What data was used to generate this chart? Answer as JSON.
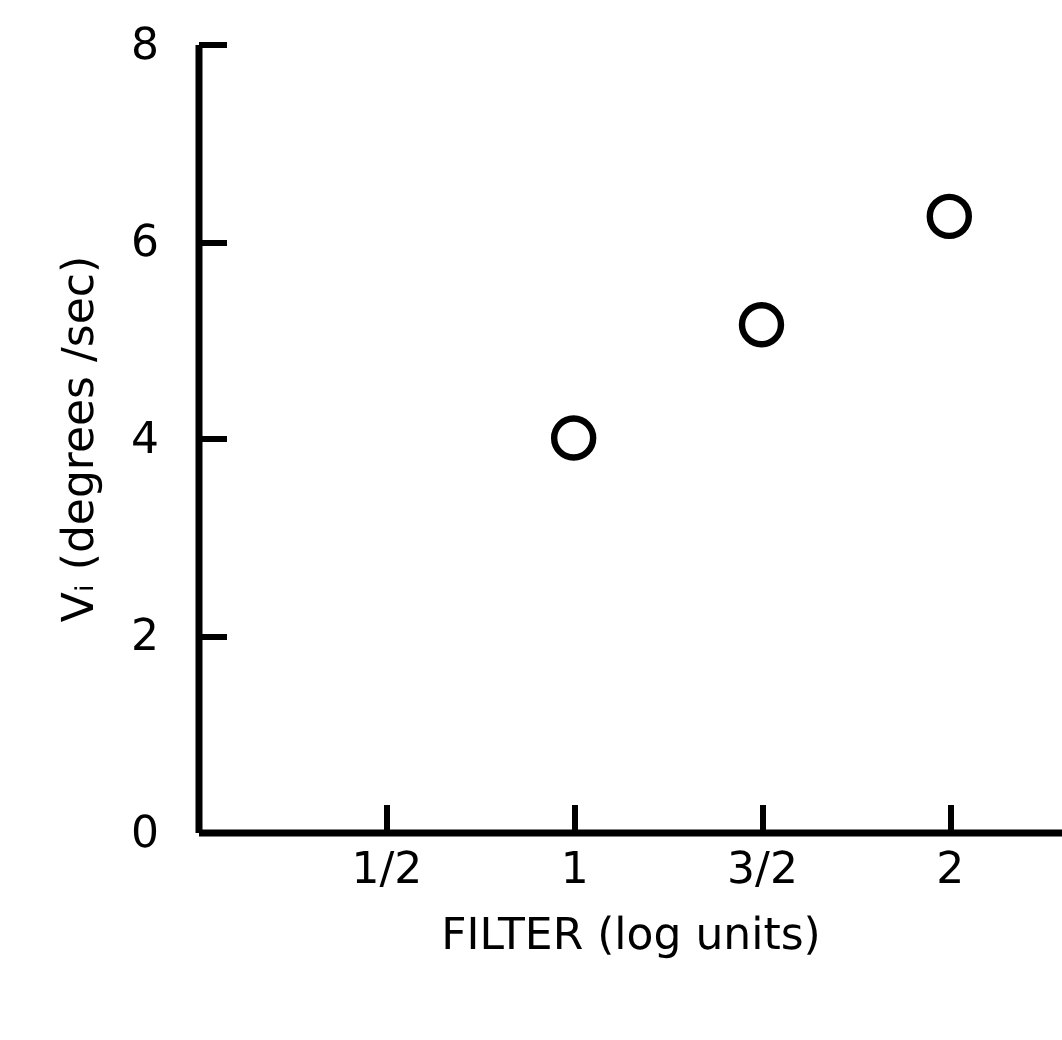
{
  "chart_data": {
    "type": "scatter",
    "xlabel": "FILTER (log units)",
    "ylabel": "Vᵢ (degrees /sec)",
    "x": [
      1,
      1.5,
      2
    ],
    "values": [
      4.0,
      5.15,
      6.25
    ],
    "color": "#000000",
    "marker": "circle",
    "xlim": [
      0,
      2.3
    ],
    "xticks": [
      {
        "value": 0.5,
        "label": "1/2"
      },
      {
        "value": 1,
        "label": "1"
      },
      {
        "value": 1.5,
        "label": "3/2"
      },
      {
        "value": 2,
        "label": "2"
      }
    ],
    "ylim": [
      0,
      8
    ],
    "yticks": [
      0,
      2,
      4,
      6,
      8
    ],
    "grid": false
  }
}
